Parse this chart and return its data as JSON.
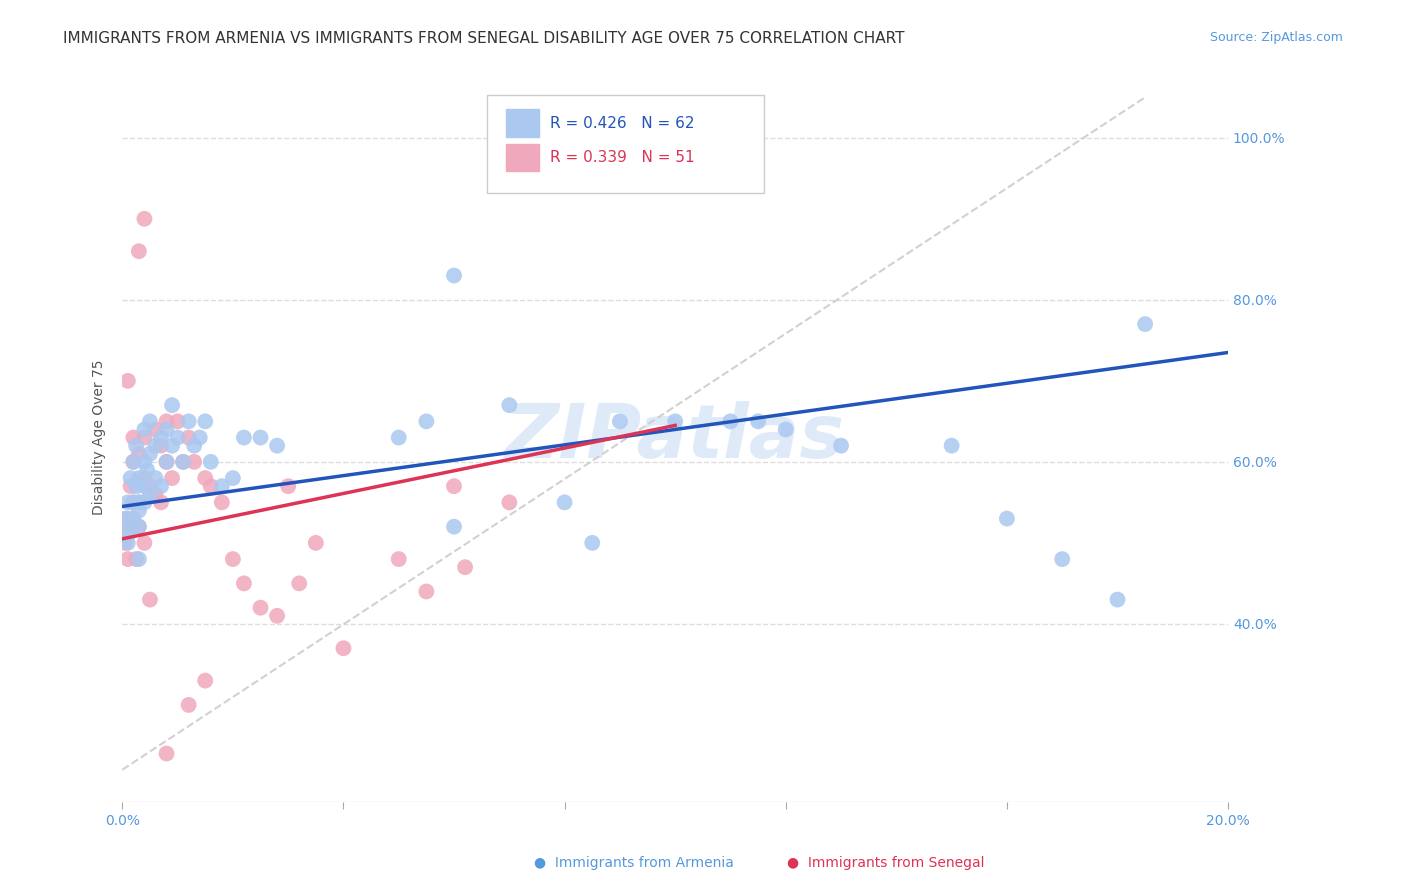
{
  "title": "IMMIGRANTS FROM ARMENIA VS IMMIGRANTS FROM SENEGAL DISABILITY AGE OVER 75 CORRELATION CHART",
  "source": "Source: ZipAtlas.com",
  "ylabel": "Disability Age Over 75",
  "watermark": "ZIPatlas",
  "xlim": [
    0.0,
    0.2
  ],
  "ylim": [
    0.18,
    1.08
  ],
  "yticks": [
    0.4,
    0.6,
    0.8,
    1.0
  ],
  "yticklabels": [
    "40.0%",
    "60.0%",
    "80.0%",
    "100.0%"
  ],
  "xtick_positions": [
    0.0,
    0.04,
    0.08,
    0.12,
    0.16,
    0.2
  ],
  "xticklabels": [
    "0.0%",
    "",
    "",
    "",
    "",
    "20.0%"
  ],
  "armenia_color": "#aac8f0",
  "senegal_color": "#f0a8bc",
  "armenia_line_color": "#2255bb",
  "senegal_line_color": "#dd3355",
  "ref_line_color": "#cccccc",
  "background_color": "#ffffff",
  "grid_color": "#dddddd",
  "title_fontsize": 11,
  "axis_label_fontsize": 10,
  "tick_fontsize": 10,
  "source_fontsize": 9,
  "legend_text_armenia_color": "#2255bb",
  "legend_text_senegal_color": "#dd3355",
  "R_armenia": 0.426,
  "N_armenia": 62,
  "R_senegal": 0.339,
  "N_senegal": 51,
  "armenia_line_x0": 0.0,
  "armenia_line_y0": 0.545,
  "armenia_line_x1": 0.2,
  "armenia_line_y1": 0.735,
  "senegal_line_x0": 0.0,
  "senegal_line_y0": 0.505,
  "senegal_line_x1": 0.1,
  "senegal_line_y1": 0.645,
  "ref_line_x0": 0.0,
  "ref_line_y0": 0.22,
  "ref_line_x1": 0.185,
  "ref_line_y1": 1.05,
  "arm_cluster_x": [
    0.0005,
    0.001,
    0.001,
    0.001,
    0.0015,
    0.0015,
    0.002,
    0.002,
    0.002,
    0.0025,
    0.0025,
    0.003,
    0.003,
    0.003,
    0.003,
    0.003,
    0.004,
    0.004,
    0.004,
    0.004,
    0.0045,
    0.005,
    0.005,
    0.005,
    0.006,
    0.006,
    0.007,
    0.007,
    0.008,
    0.008,
    0.009,
    0.009,
    0.01,
    0.011,
    0.012,
    0.013,
    0.014,
    0.015,
    0.016,
    0.018,
    0.02,
    0.022,
    0.025,
    0.028,
    0.05,
    0.055,
    0.06,
    0.08,
    0.085,
    0.09,
    0.1,
    0.11,
    0.115,
    0.13,
    0.15,
    0.16,
    0.17,
    0.18,
    0.185,
    0.06,
    0.07,
    0.12
  ],
  "arm_cluster_y": [
    0.53,
    0.5,
    0.55,
    0.51,
    0.52,
    0.58,
    0.55,
    0.53,
    0.6,
    0.57,
    0.62,
    0.52,
    0.55,
    0.58,
    0.54,
    0.48,
    0.57,
    0.6,
    0.55,
    0.64,
    0.59,
    0.61,
    0.56,
    0.65,
    0.62,
    0.58,
    0.63,
    0.57,
    0.64,
    0.6,
    0.62,
    0.67,
    0.63,
    0.6,
    0.65,
    0.62,
    0.63,
    0.65,
    0.6,
    0.57,
    0.58,
    0.63,
    0.63,
    0.62,
    0.63,
    0.65,
    0.52,
    0.55,
    0.5,
    0.65,
    0.65,
    0.65,
    0.65,
    0.62,
    0.62,
    0.53,
    0.48,
    0.43,
    0.77,
    0.83,
    0.67,
    0.64
  ],
  "sen_cluster_x": [
    0.0003,
    0.0005,
    0.001,
    0.001,
    0.001,
    0.0015,
    0.0015,
    0.002,
    0.002,
    0.002,
    0.0025,
    0.003,
    0.003,
    0.003,
    0.004,
    0.004,
    0.004,
    0.005,
    0.005,
    0.006,
    0.006,
    0.007,
    0.007,
    0.008,
    0.008,
    0.009,
    0.01,
    0.011,
    0.012,
    0.013,
    0.015,
    0.016,
    0.018,
    0.02,
    0.022,
    0.025,
    0.028,
    0.03,
    0.032,
    0.035,
    0.04,
    0.05,
    0.055,
    0.06,
    0.062,
    0.07,
    0.008,
    0.012,
    0.015,
    0.003,
    0.004
  ],
  "sen_cluster_y": [
    0.52,
    0.5,
    0.53,
    0.48,
    0.7,
    0.52,
    0.57,
    0.55,
    0.6,
    0.63,
    0.48,
    0.52,
    0.55,
    0.61,
    0.58,
    0.5,
    0.63,
    0.57,
    0.43,
    0.56,
    0.64,
    0.55,
    0.62,
    0.6,
    0.65,
    0.58,
    0.65,
    0.6,
    0.63,
    0.6,
    0.58,
    0.57,
    0.55,
    0.48,
    0.45,
    0.42,
    0.41,
    0.57,
    0.45,
    0.5,
    0.37,
    0.48,
    0.44,
    0.57,
    0.47,
    0.55,
    0.24,
    0.3,
    0.33,
    0.86,
    0.9
  ]
}
